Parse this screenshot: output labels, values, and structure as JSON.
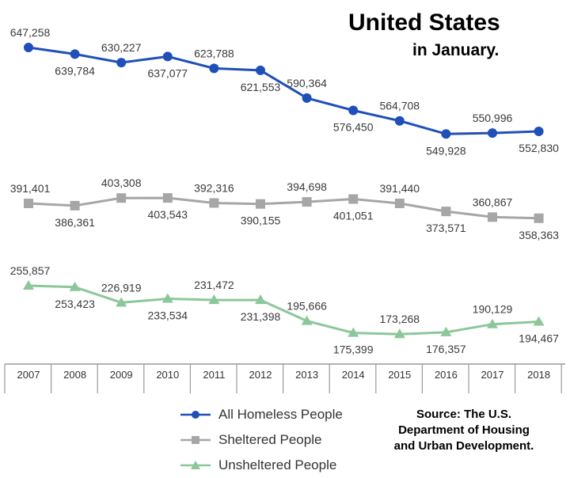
{
  "title": {
    "main": "United States",
    "sub": "in January."
  },
  "source": {
    "line1": "Source: The U.S.",
    "line2": "Department of Housing",
    "line3": "and Urban Development."
  },
  "chart_data": {
    "type": "line",
    "title": "United States",
    "subtitle": "in January.",
    "xlabel": "",
    "ylabel": "",
    "grid": false,
    "legend_position": "bottom",
    "x": [
      "2007",
      "2008",
      "2009",
      "2010",
      "2011",
      "2012",
      "2013",
      "2014",
      "2015",
      "2016",
      "2017",
      "2018"
    ],
    "series": [
      {
        "name": "All Homeless People",
        "color": "#1f4fb8",
        "marker": "circle",
        "values": [
          647258,
          639784,
          630227,
          637077,
          623788,
          621553,
          590364,
          576450,
          564708,
          549928,
          550996,
          552830
        ],
        "labels": [
          "647,258",
          "639,784",
          "630,227",
          "637,077",
          "623,788",
          "621,553",
          "590,364",
          "576,450",
          "564,708",
          "549,928",
          "550,996",
          "552,830"
        ]
      },
      {
        "name": "Sheltered People",
        "color": "#a6a6a6",
        "marker": "square",
        "values": [
          391401,
          386361,
          403308,
          403543,
          392316,
          390155,
          394698,
          401051,
          391440,
          373571,
          360867,
          358363
        ],
        "labels": [
          "391,401",
          "386,361",
          "403,308",
          "403,543",
          "392,316",
          "390,155",
          "394,698",
          "401,051",
          "391,440",
          "373,571",
          "360,867",
          "358,363"
        ]
      },
      {
        "name": "Unsheltered People",
        "color": "#8cc79a",
        "marker": "triangle",
        "values": [
          255857,
          253423,
          226919,
          233534,
          231472,
          231398,
          195666,
          175399,
          173268,
          176357,
          190129,
          194467
        ],
        "labels": [
          "255,857",
          "253,423",
          "226,919",
          "233,534",
          "231,472",
          "231,398",
          "195,666",
          "175,399",
          "173,268",
          "176,357",
          "190,129",
          "194,467"
        ]
      }
    ]
  }
}
